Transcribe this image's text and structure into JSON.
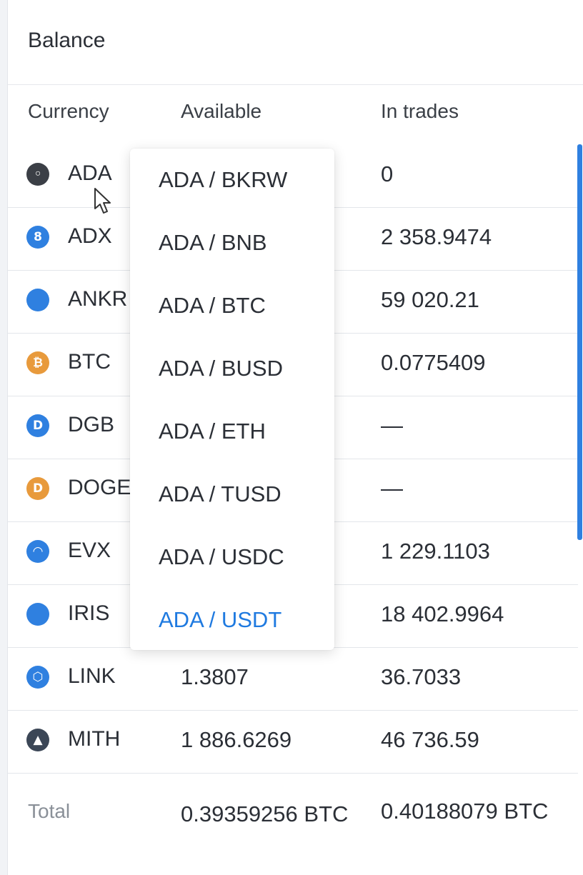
{
  "panel": {
    "title": "Balance"
  },
  "columns": {
    "currency": "Currency",
    "available": "Available",
    "in_trades": "In trades"
  },
  "rows": [
    {
      "currency": "ADA",
      "icon": "ada-coin-icon",
      "icon_color": "#3b3f46",
      "icon_glyph": "◦",
      "available": "",
      "in_trades": "0"
    },
    {
      "currency": "ADX",
      "icon": "adx-coin-icon",
      "icon_color": "#2f80e0",
      "icon_glyph": "8",
      "available": "",
      "in_trades": "2 358.9474"
    },
    {
      "currency": "ANKR",
      "icon": "ankr-coin-icon",
      "icon_color": "#2f80e0",
      "icon_glyph": "",
      "available": "",
      "in_trades": "59 020.21"
    },
    {
      "currency": "BTC",
      "icon": "btc-coin-icon",
      "icon_color": "#e89a3c",
      "icon_glyph": "₿",
      "available": "",
      "in_trades": "0.0775409"
    },
    {
      "currency": "DGB",
      "icon": "dgb-coin-icon",
      "icon_color": "#2f80e0",
      "icon_glyph": "D",
      "available": "",
      "in_trades": "—"
    },
    {
      "currency": "DOGE",
      "icon": "doge-coin-icon",
      "icon_color": "#e89a3c",
      "icon_glyph": "D",
      "available": "",
      "in_trades": "—"
    },
    {
      "currency": "EVX",
      "icon": "evx-coin-icon",
      "icon_color": "#2f80e0",
      "icon_glyph": "◠",
      "available": "",
      "in_trades": "1 229.1103"
    },
    {
      "currency": "IRIS",
      "icon": "iris-coin-icon",
      "icon_color": "#2f80e0",
      "icon_glyph": "",
      "available": "",
      "in_trades": "18 402.9964"
    },
    {
      "currency": "LINK",
      "icon": "link-coin-icon",
      "icon_color": "#2f80e0",
      "icon_glyph": "⬡",
      "available": "1.3807",
      "in_trades": "36.7033"
    },
    {
      "currency": "MITH",
      "icon": "mith-coin-icon",
      "icon_color": "#3b4656",
      "icon_glyph": "▲",
      "available": "1 886.6269",
      "in_trades": "46 736.59"
    }
  ],
  "total": {
    "label": "Total",
    "available": "0.39359256 BTC",
    "in_trades": "0.40188079 BTC"
  },
  "dropdown": {
    "items": [
      "ADA / BKRW",
      "ADA / BNB",
      "ADA / BTC",
      "ADA / BUSD",
      "ADA / ETH",
      "ADA / TUSD",
      "ADA / USDC",
      "ADA / USDT"
    ],
    "active_index": 7,
    "active_color": "#1f7ae0"
  },
  "theme": {
    "accent": "#2f80e0",
    "text": "#2b2f36",
    "muted": "#8a9098"
  }
}
